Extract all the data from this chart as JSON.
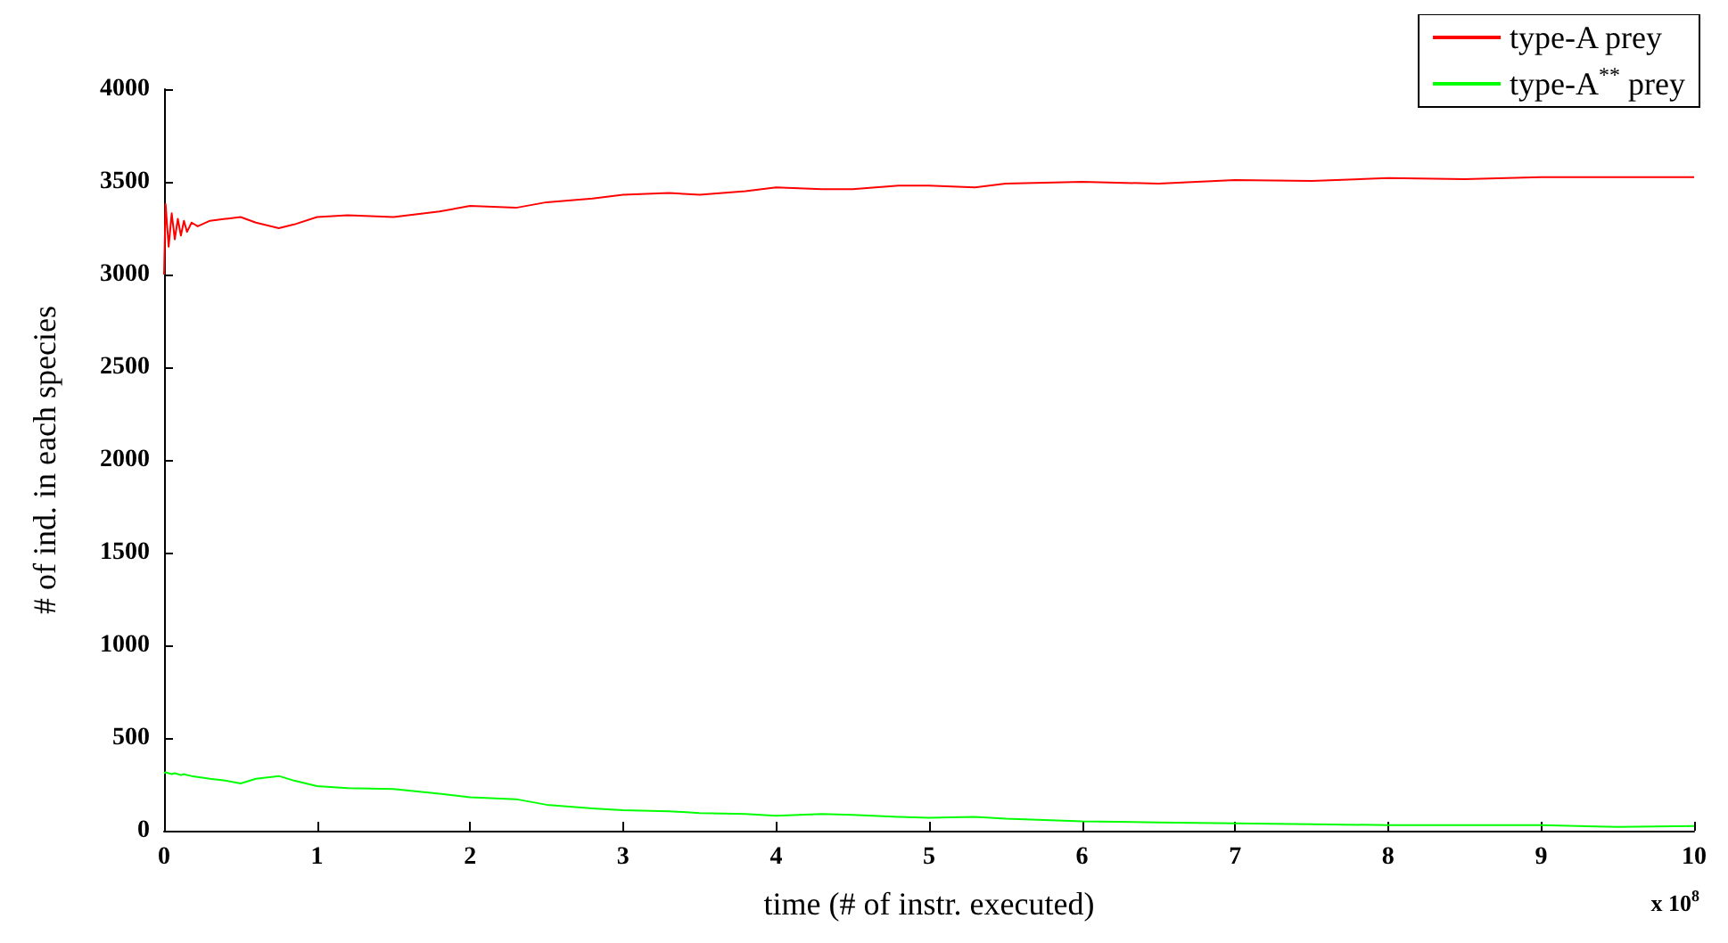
{
  "chart_data": {
    "type": "line",
    "xlabel": "time (# of instr. executed)",
    "ylabel": "# of ind. in each species",
    "xlim": [
      0,
      10
    ],
    "xticks": [
      0,
      1,
      2,
      3,
      4,
      5,
      6,
      7,
      8,
      9,
      10
    ],
    "ylim": [
      0,
      4000
    ],
    "yticks": [
      0,
      500,
      1000,
      1500,
      2000,
      2500,
      3000,
      3500,
      4000
    ],
    "x": [
      0,
      0.01,
      0.03,
      0.05,
      0.07,
      0.09,
      0.11,
      0.13,
      0.15,
      0.18,
      0.22,
      0.3,
      0.4,
      0.5,
      0.6,
      0.75,
      0.85,
      1.0,
      1.2,
      1.5,
      1.8,
      2.0,
      2.3,
      2.5,
      2.8,
      3.0,
      3.3,
      3.5,
      3.8,
      4.0,
      4.3,
      4.5,
      4.8,
      5.0,
      5.3,
      5.5,
      6.0,
      6.5,
      7.0,
      7.5,
      8.0,
      8.5,
      9.0,
      9.5,
      10.0
    ],
    "series": [
      {
        "name": "type-A prey",
        "color": "#ff0000",
        "values": [
          3000,
          3380,
          3150,
          3330,
          3190,
          3300,
          3210,
          3290,
          3230,
          3280,
          3260,
          3290,
          3300,
          3310,
          3280,
          3250,
          3270,
          3310,
          3320,
          3310,
          3340,
          3370,
          3360,
          3390,
          3410,
          3430,
          3440,
          3430,
          3450,
          3470,
          3460,
          3460,
          3480,
          3480,
          3470,
          3490,
          3500,
          3490,
          3510,
          3505,
          3520,
          3515,
          3525,
          3525,
          3525
        ]
      },
      {
        "name": "type-A$^{**}$ prey",
        "color": "#00ff00",
        "values": [
          310,
          315,
          310,
          305,
          310,
          305,
          300,
          305,
          300,
          295,
          290,
          280,
          270,
          255,
          280,
          295,
          270,
          240,
          230,
          225,
          200,
          180,
          170,
          140,
          120,
          110,
          105,
          95,
          90,
          80,
          90,
          85,
          75,
          70,
          75,
          65,
          50,
          45,
          40,
          35,
          30,
          30,
          30,
          20,
          25
        ]
      }
    ],
    "legend": "top right",
    "grid": false,
    "marker": "none",
    "line_style": "solid",
    "annotations": [
      "x 10$^{8}$"
    ]
  }
}
